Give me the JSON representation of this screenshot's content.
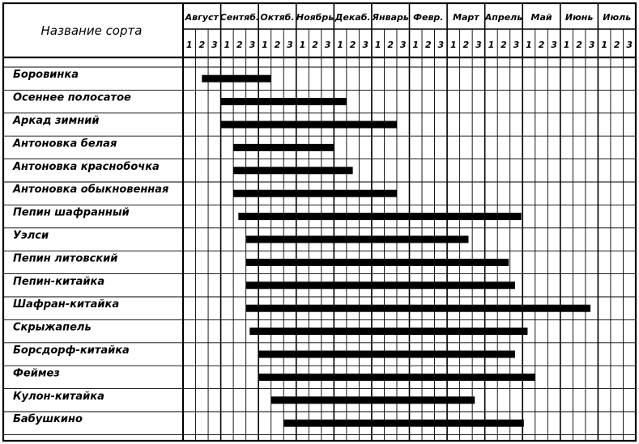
{
  "chart_data": {
    "type": "gantt",
    "header_title": "Название сорта",
    "months": [
      "Август",
      "Сентяб.",
      "Октяб.",
      "Ноябрь",
      "Декаб.",
      "Январь",
      "Февр.",
      "Март",
      "Апрель",
      "Май",
      "Июнь",
      "Июль"
    ],
    "decades": [
      "1",
      "2",
      "3"
    ],
    "varieties": [
      {
        "name": "Боровинка",
        "start": 1.5,
        "end": 7.0
      },
      {
        "name": "Осеннее полосатое",
        "start": 3.0,
        "end": 13.0
      },
      {
        "name": "Аркад зимний",
        "start": 3.0,
        "end": 17.0
      },
      {
        "name": "Антоновка белая",
        "start": 4.0,
        "end": 12.0
      },
      {
        "name": "Антоновка краснобочка",
        "start": 4.0,
        "end": 13.5
      },
      {
        "name": "Антоновка обыкновенная",
        "start": 4.0,
        "end": 17.0
      },
      {
        "name": "Пепин шафранный",
        "start": 4.4,
        "end": 26.9
      },
      {
        "name": "Уэлси",
        "start": 5.0,
        "end": 22.7
      },
      {
        "name": "Пепин литовский",
        "start": 5.0,
        "end": 25.9
      },
      {
        "name": "Пепин-китайка",
        "start": 5.0,
        "end": 26.4
      },
      {
        "name": "Шафран-китайка",
        "start": 5.0,
        "end": 32.4
      },
      {
        "name": "Скрыжапель",
        "start": 5.3,
        "end": 27.4
      },
      {
        "name": "Борсдорф-китайка",
        "start": 6.0,
        "end": 26.4
      },
      {
        "name": "Феймез",
        "start": 6.0,
        "end": 28.0
      },
      {
        "name": "Кулон-китайка",
        "start": 7.0,
        "end": 23.2
      },
      {
        "name": "Бабушкино",
        "start": 8.0,
        "end": 27.1
      }
    ]
  }
}
